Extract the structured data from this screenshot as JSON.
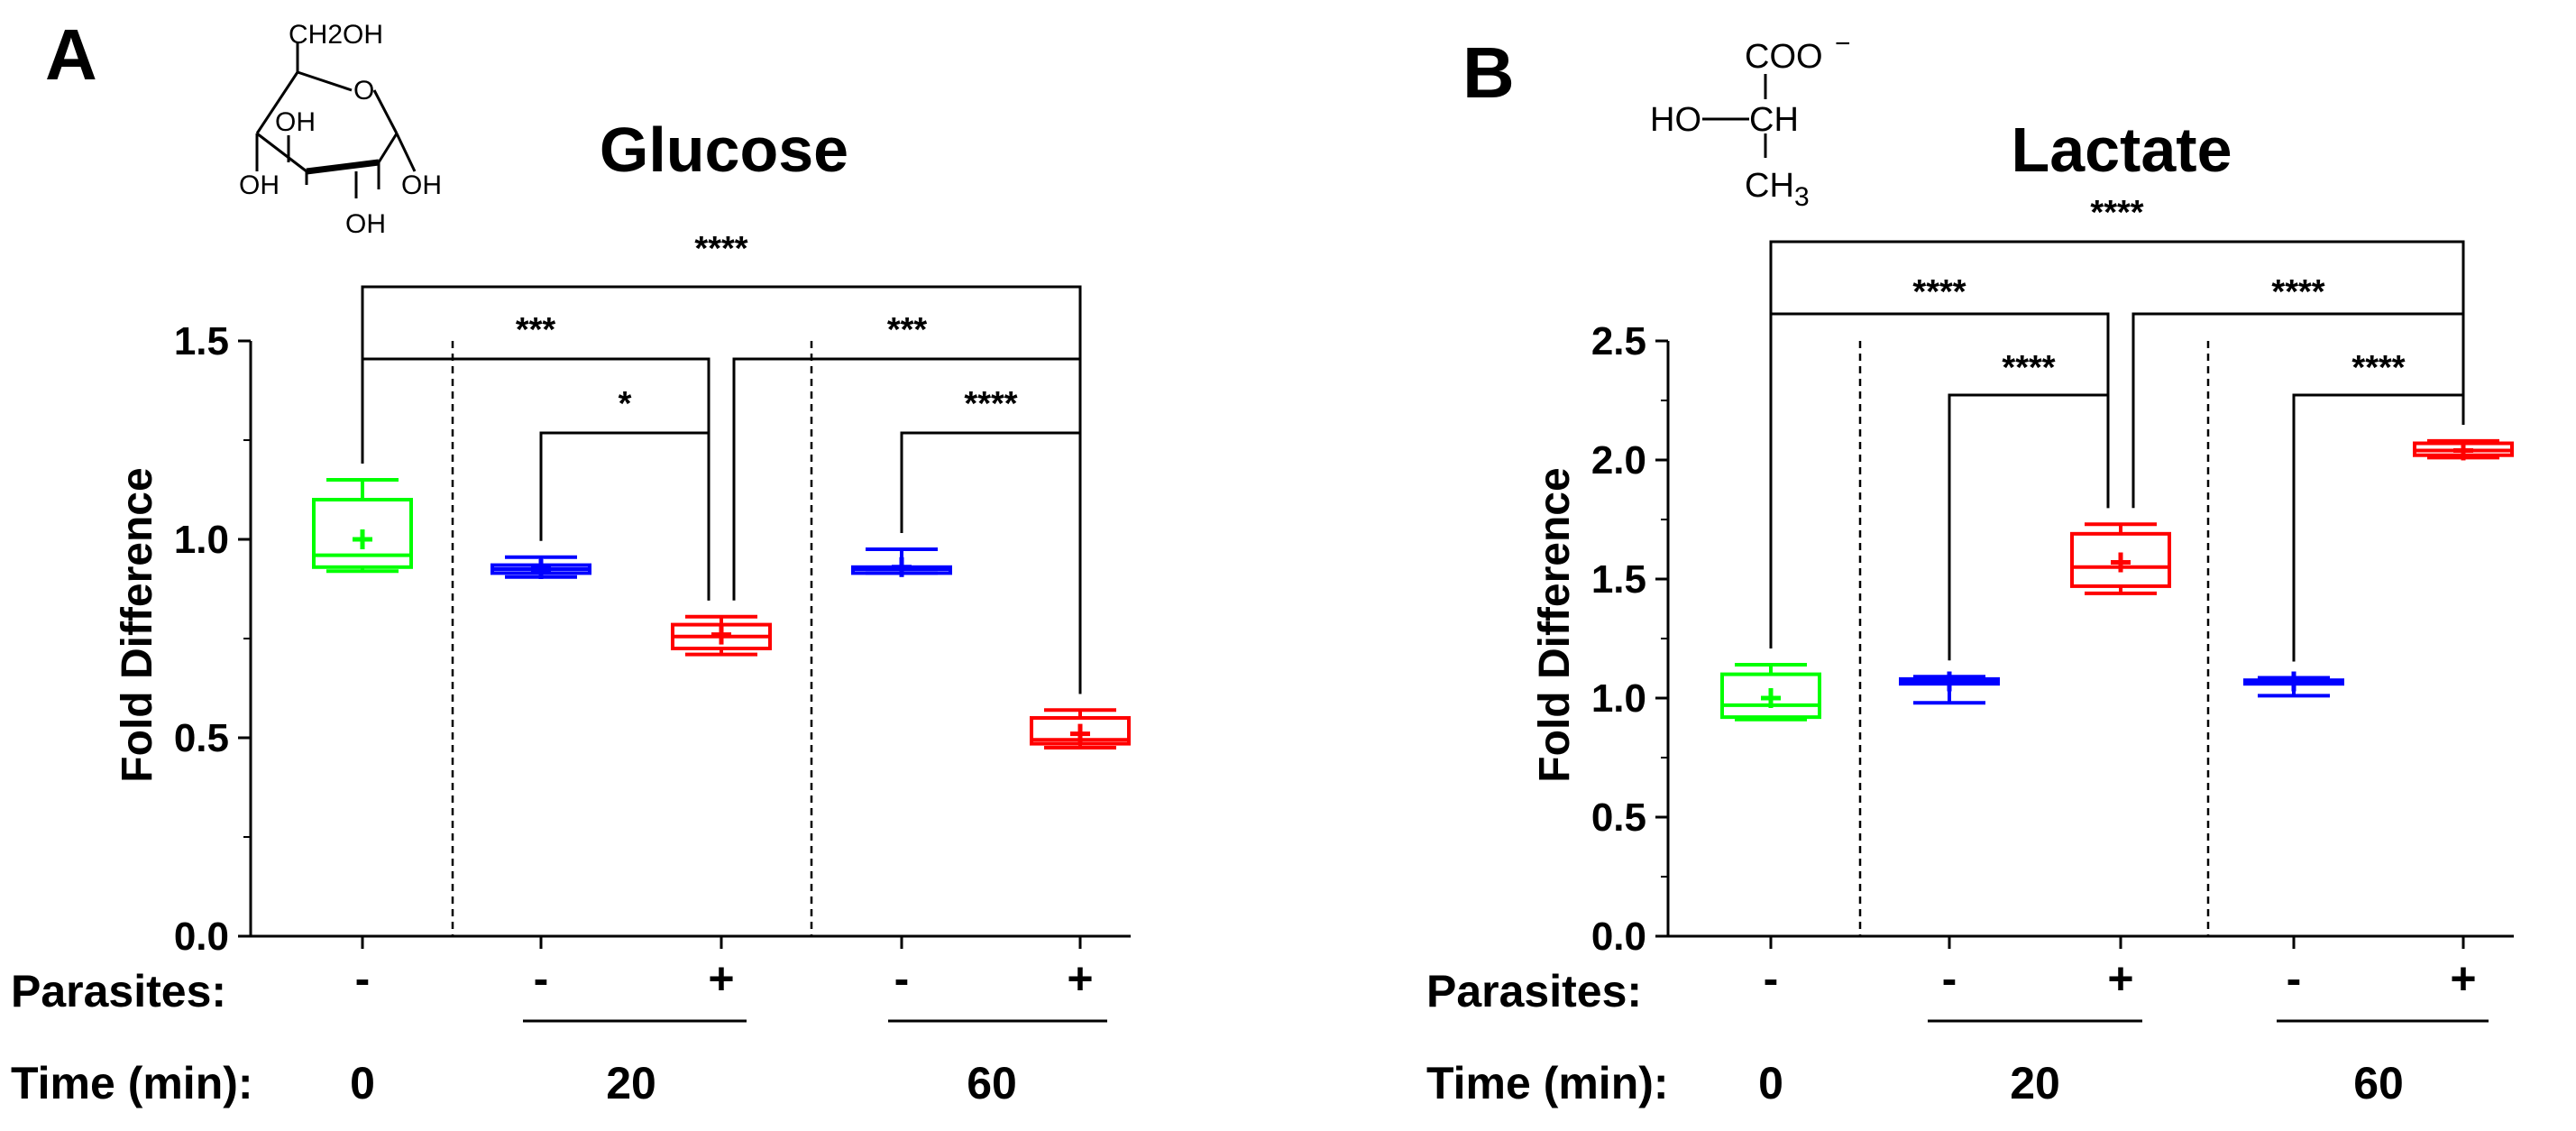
{
  "panels": [
    {
      "letter": "A",
      "title": "Glucose",
      "structure": {
        "labels": [
          "CH2OH",
          "O",
          "OH",
          "OH",
          "OH",
          "OH"
        ]
      },
      "chart_data": {
        "type": "box",
        "title": "Glucose",
        "ylabel": "Fold Difference",
        "ylim": [
          0,
          1.5
        ],
        "yticks": [
          "0.0",
          "0.5",
          "1.0",
          "1.5"
        ],
        "groups": [
          {
            "parasites": "-",
            "time": "0",
            "color": "#00ff00",
            "whisker_low": 0.92,
            "q1": 0.93,
            "median": 0.96,
            "q3": 1.1,
            "whisker_high": 1.15,
            "mean": 1.0
          },
          {
            "parasites": "-",
            "time": "20",
            "color": "#0000ff",
            "whisker_low": 0.905,
            "q1": 0.915,
            "median": 0.925,
            "q3": 0.935,
            "whisker_high": 0.955,
            "mean": 0.925
          },
          {
            "parasites": "+",
            "time": "20",
            "color": "#ff0000",
            "whisker_low": 0.71,
            "q1": 0.725,
            "median": 0.755,
            "q3": 0.785,
            "whisker_high": 0.805,
            "mean": 0.76
          },
          {
            "parasites": "-",
            "time": "60",
            "color": "#0000ff",
            "whisker_low": 0.915,
            "q1": 0.915,
            "median": 0.925,
            "q3": 0.93,
            "whisker_high": 0.975,
            "mean": 0.93
          },
          {
            "parasites": "+",
            "time": "60",
            "color": "#ff0000",
            "whisker_low": 0.475,
            "q1": 0.485,
            "median": 0.495,
            "q3": 0.55,
            "whisker_high": 0.57,
            "mean": 0.51
          }
        ],
        "significance": [
          {
            "from": 0,
            "to": 4,
            "label": "****"
          },
          {
            "from": 0,
            "to": 2,
            "label": "***"
          },
          {
            "from": 2,
            "to": 4,
            "label": "***"
          },
          {
            "from": 1,
            "to": 2,
            "label": "*"
          },
          {
            "from": 3,
            "to": 4,
            "label": "****"
          }
        ],
        "row_labels": {
          "parasites": "Parasites:",
          "time": "Time (min):"
        },
        "time_labels": [
          "0",
          "20",
          "60"
        ]
      }
    },
    {
      "letter": "B",
      "title": "Lactate",
      "structure": {
        "labels": [
          "COO",
          "−",
          "HO",
          "CH",
          "CH",
          "3"
        ]
      },
      "chart_data": {
        "type": "box",
        "title": "Lactate",
        "ylabel": "Fold Difference",
        "ylim": [
          0,
          2.5
        ],
        "yticks": [
          "0.0",
          "0.5",
          "1.0",
          "1.5",
          "2.0",
          "2.5"
        ],
        "groups": [
          {
            "parasites": "-",
            "time": "0",
            "color": "#00ff00",
            "whisker_low": 0.91,
            "q1": 0.92,
            "median": 0.97,
            "q3": 1.1,
            "whisker_high": 1.14,
            "mean": 1.0
          },
          {
            "parasites": "-",
            "time": "20",
            "color": "#0000ff",
            "whisker_low": 0.98,
            "q1": 1.06,
            "median": 1.07,
            "q3": 1.08,
            "whisker_high": 1.09,
            "mean": 1.07
          },
          {
            "parasites": "+",
            "time": "20",
            "color": "#ff0000",
            "whisker_low": 1.44,
            "q1": 1.47,
            "median": 1.55,
            "q3": 1.69,
            "whisker_high": 1.73,
            "mean": 1.57
          },
          {
            "parasites": "-",
            "time": "60",
            "color": "#0000ff",
            "whisker_low": 1.01,
            "q1": 1.06,
            "median": 1.07,
            "q3": 1.075,
            "whisker_high": 1.085,
            "mean": 1.07
          },
          {
            "parasites": "+",
            "time": "60",
            "color": "#ff0000",
            "whisker_low": 2.01,
            "q1": 2.02,
            "median": 2.04,
            "q3": 2.07,
            "whisker_high": 2.08,
            "mean": 2.04
          }
        ],
        "significance": [
          {
            "from": 0,
            "to": 4,
            "label": "****"
          },
          {
            "from": 0,
            "to": 2,
            "label": "****"
          },
          {
            "from": 2,
            "to": 4,
            "label": "****"
          },
          {
            "from": 1,
            "to": 2,
            "label": "****"
          },
          {
            "from": 3,
            "to": 4,
            "label": "****"
          }
        ],
        "row_labels": {
          "parasites": "Parasites:",
          "time": "Time (min):"
        },
        "time_labels": [
          "0",
          "20",
          "60"
        ]
      }
    }
  ]
}
